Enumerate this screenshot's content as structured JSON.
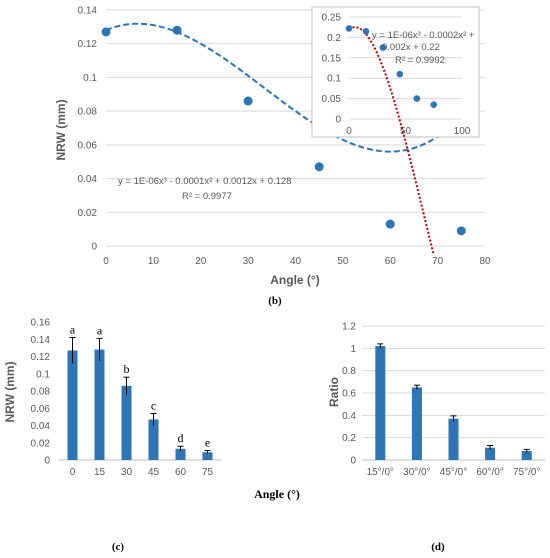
{
  "chart_data": [
    {
      "id": "b",
      "type": "scatter",
      "panel_label": "(b)",
      "xlabel": "Angle (°)",
      "ylabel": "NRW (mm)",
      "xlim": [
        0,
        80
      ],
      "ylim": [
        0,
        0.14
      ],
      "x_ticks": [
        "0",
        "10",
        "20",
        "30",
        "40",
        "50",
        "60",
        "70",
        "80"
      ],
      "y_ticks": [
        "0",
        "0.02",
        "0.04",
        "0.06",
        "0.08",
        "0.1",
        "0.12",
        "0.14"
      ],
      "grid": true,
      "points": {
        "x": [
          0,
          15,
          30,
          45,
          60,
          75
        ],
        "y": [
          0.127,
          0.128,
          0.086,
          0.047,
          0.013,
          0.009
        ]
      },
      "trendline": {
        "type": "polynomial-3",
        "coef": [
          1e-06,
          -0.0001,
          0.0012,
          0.128
        ],
        "style": "dashed",
        "color": "#2e75b6"
      },
      "equation": [
        "y = 1E-06x³ - 0.0001x² + 0.0012x + 0.128",
        "R² = 0.9977"
      ],
      "marker_color": "#2e75b6",
      "inset": {
        "xlim": [
          0,
          100
        ],
        "ylim": [
          0,
          0.25
        ],
        "x_ticks": [
          "0",
          "50",
          "100"
        ],
        "y_ticks": [
          "0",
          "0.05",
          "0.1",
          "0.15",
          "0.2",
          "0.25"
        ],
        "grid": true,
        "points": {
          "x": [
            0,
            15,
            30,
            45,
            60,
            75
          ],
          "y": [
            0.222,
            0.215,
            0.175,
            0.11,
            0.05,
            0.035
          ]
        },
        "trendline": {
          "type": "polynomial-3",
          "coef": [
            1e-06,
            -0.0002,
            0.002,
            0.22
          ],
          "style": "dotted",
          "color": "#c00000"
        },
        "equation": [
          "y = 1E-06x³ - 0.0002x² +",
          "0.002x + 0.22",
          "R² = 0.9992"
        ]
      }
    },
    {
      "id": "c",
      "type": "bar",
      "panel_label": "(c)",
      "xlabel": "Angle (°)",
      "ylabel": "NRW (mm)",
      "ylim": [
        0,
        0.16
      ],
      "categories": [
        "0",
        "15",
        "30",
        "45",
        "60",
        "75"
      ],
      "values": [
        0.127,
        0.128,
        0.086,
        0.047,
        0.013,
        0.009
      ],
      "errors": [
        0.015,
        0.013,
        0.01,
        0.007,
        0.003,
        0.002
      ],
      "letters": [
        "a",
        "a",
        "b",
        "c",
        "d",
        "e"
      ],
      "y_ticks": [
        "0",
        "0.02",
        "0.04",
        "0.06",
        "0.08",
        "0.1",
        "0.12",
        "0.14",
        "0.16"
      ],
      "grid": false,
      "bar_color": "#2e75b6"
    },
    {
      "id": "d",
      "type": "bar",
      "panel_label": "(d)",
      "xlabel": "",
      "ylabel": "Ratio",
      "ylim": [
        0,
        1.2
      ],
      "categories": [
        "15°/0°",
        "30°/0°",
        "45°/0°",
        "60°/0°",
        "75°/0°"
      ],
      "values": [
        1.02,
        0.65,
        0.37,
        0.11,
        0.08
      ],
      "errors": [
        0.02,
        0.02,
        0.025,
        0.02,
        0.015
      ],
      "y_ticks": [
        "0",
        "0.2",
        "0.4",
        "0.6",
        "0.8",
        "1",
        "1.2"
      ],
      "grid": true,
      "bar_color": "#2e75b6"
    }
  ]
}
